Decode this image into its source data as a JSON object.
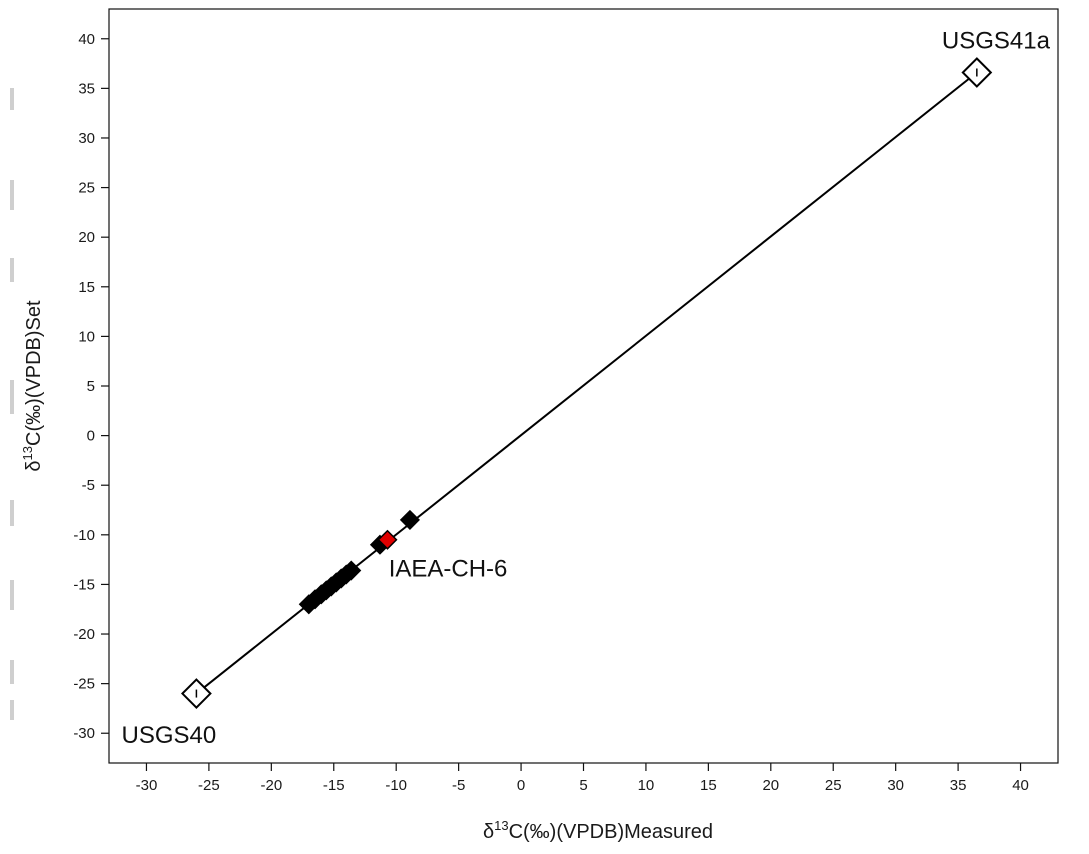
{
  "chart_data": {
    "type": "scatter",
    "title": "",
    "xlabel": "δ13C(‰)(VPDB)Measured",
    "ylabel": "δ13C(‰)(VPDB)Set",
    "xlabel_parts": {
      "pre": "δ",
      "sup": "13",
      "post": "C(‰)(VPDB)Measured"
    },
    "ylabel_parts": {
      "pre": "δ",
      "sup": "13",
      "post": "C(‰)(VPDB)Set"
    },
    "xlim": [
      -33,
      43
    ],
    "ylim": [
      -33,
      43
    ],
    "x_ticks": [
      -30,
      -25,
      -20,
      -15,
      -10,
      -5,
      0,
      5,
      10,
      15,
      20,
      25,
      30,
      35,
      40
    ],
    "y_ticks": [
      -30,
      -25,
      -20,
      -15,
      -10,
      -5,
      0,
      5,
      10,
      15,
      20,
      25,
      30,
      35,
      40
    ],
    "grid": false,
    "regression_line": {
      "from": [
        -26.0,
        -26.0
      ],
      "to": [
        36.5,
        36.6
      ]
    },
    "series": [
      {
        "marker": "open-diamond",
        "color": "#000000",
        "points": [
          {
            "x": -26.0,
            "y": -26.0
          },
          {
            "x": 36.5,
            "y": 36.6
          }
        ]
      },
      {
        "marker": "filled-diamond",
        "color": "#000000",
        "points": [
          {
            "x": -17.0,
            "y": -17.0
          },
          {
            "x": -16.5,
            "y": -16.5
          },
          {
            "x": -16.0,
            "y": -16.0
          },
          {
            "x": -15.6,
            "y": -15.6
          },
          {
            "x": -15.2,
            "y": -15.2
          },
          {
            "x": -14.8,
            "y": -14.8
          },
          {
            "x": -14.4,
            "y": -14.4
          },
          {
            "x": -14.0,
            "y": -14.0
          },
          {
            "x": -13.6,
            "y": -13.6
          },
          {
            "x": -11.3,
            "y": -11.0
          },
          {
            "x": -8.9,
            "y": -8.5
          }
        ]
      },
      {
        "marker": "filled-diamond",
        "color": "#e00000",
        "points": [
          {
            "x": -10.7,
            "y": -10.5
          }
        ]
      }
    ],
    "annotations": [
      {
        "text": "USGS41a",
        "x": 33.7,
        "y": 39.0
      },
      {
        "text": "IAEA-CH-6",
        "x": -10.6,
        "y": -14.2
      },
      {
        "text": "USGS40",
        "x": -32.0,
        "y": -31.0
      }
    ]
  }
}
